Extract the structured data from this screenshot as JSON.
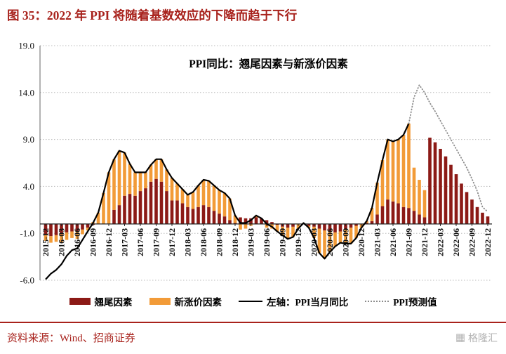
{
  "header": {
    "title": "图 35：2022 年 PPI 将随着基数效应的下降而趋于下行"
  },
  "footer": {
    "source": "资料来源：Wind、招商证券",
    "watermark": "格隆汇"
  },
  "colors": {
    "brand_red": "#A8221C",
    "bar_red": "#8C1A16",
    "bar_orange": "#F29B38",
    "line_black": "#000000",
    "forecast_gray": "#8C8C8C"
  },
  "chart_data": {
    "type": "bar",
    "title": "PPI同比：翘尾因素与新涨价因素",
    "ylim": [
      -6,
      19
    ],
    "y_ticks": [
      19.0,
      14.0,
      9.0,
      4.0,
      -1.0,
      -6.0
    ],
    "grid": "dotted-horizontal",
    "legend_position": "bottom",
    "x_tick_every": 3,
    "months": [
      "2015-12",
      "2016-01",
      "2016-02",
      "2016-03",
      "2016-04",
      "2016-05",
      "2016-06",
      "2016-07",
      "2016-08",
      "2016-09",
      "2016-10",
      "2016-11",
      "2016-12",
      "2017-01",
      "2017-02",
      "2017-03",
      "2017-04",
      "2017-05",
      "2017-06",
      "2017-07",
      "2017-08",
      "2017-09",
      "2017-10",
      "2017-11",
      "2017-12",
      "2018-01",
      "2018-02",
      "2018-03",
      "2018-04",
      "2018-05",
      "2018-06",
      "2018-07",
      "2018-08",
      "2018-09",
      "2018-10",
      "2018-11",
      "2018-12",
      "2019-01",
      "2019-02",
      "2019-03",
      "2019-04",
      "2019-05",
      "2019-06",
      "2019-07",
      "2019-08",
      "2019-09",
      "2019-10",
      "2019-11",
      "2019-12",
      "2020-01",
      "2020-02",
      "2020-03",
      "2020-04",
      "2020-05",
      "2020-06",
      "2020-07",
      "2020-08",
      "2020-09",
      "2020-10",
      "2020-11",
      "2020-12",
      "2021-01",
      "2021-02",
      "2021-03",
      "2021-04",
      "2021-05",
      "2021-06",
      "2021-07",
      "2021-08",
      "2021-09",
      "2021-10",
      "2021-11",
      "2021-12",
      "2022-01",
      "2022-02",
      "2022-03",
      "2022-04",
      "2022-05",
      "2022-06",
      "2022-07",
      "2022-08",
      "2022-09",
      "2022-10",
      "2022-11",
      "2022-12"
    ],
    "series": [
      {
        "name": "翘尾因素",
        "type": "bar-stacked",
        "color": "#8C1A16",
        "values": [
          -1.2,
          -1.3,
          -1.2,
          -1.1,
          -0.9,
          -0.8,
          -0.8,
          -0.6,
          -0.4,
          -0.1,
          0,
          0,
          0,
          1.5,
          2.0,
          3.0,
          3.2,
          3.0,
          3.5,
          3.8,
          4.5,
          4.8,
          4.5,
          3.5,
          2.5,
          2.5,
          2.2,
          1.8,
          1.6,
          1.8,
          2.0,
          1.8,
          1.4,
          1.1,
          0.8,
          0.4,
          0.1,
          0.7,
          0.6,
          0.6,
          0.7,
          0.6,
          0.4,
          0.2,
          -0.1,
          -0.3,
          -0.4,
          -0.3,
          0,
          0,
          -0.2,
          -0.3,
          -0.5,
          -0.7,
          -0.8,
          -0.9,
          -0.8,
          -0.6,
          -0.4,
          -0.2,
          0,
          0.1,
          0.3,
          1.0,
          1.9,
          2.6,
          2.4,
          2.2,
          1.8,
          1.7,
          1.4,
          1.0,
          0.7,
          9.2,
          8.7,
          8.0,
          7.2,
          6.3,
          5.3,
          4.3,
          3.4,
          2.6,
          1.8,
          1.2,
          0.8
        ]
      },
      {
        "name": "新涨价因素",
        "type": "bar-stacked",
        "color": "#F29B38",
        "values": [
          -0.6,
          -0.7,
          -0.7,
          -0.9,
          -0.8,
          -0.7,
          -0.8,
          -0.5,
          -0.3,
          0.2,
          1.2,
          3.3,
          5.5,
          5.4,
          5.8,
          4.6,
          3.2,
          2.5,
          2.0,
          1.7,
          1.8,
          2.1,
          2.4,
          2.3,
          2.4,
          1.8,
          1.5,
          1.3,
          1.8,
          2.3,
          2.7,
          2.8,
          2.7,
          2.5,
          2.5,
          2.3,
          0.8,
          -0.6,
          -0.5,
          -0.2,
          0.2,
          0,
          -0.4,
          -0.5,
          -0.7,
          -0.9,
          -1.2,
          -1.1,
          -0.5,
          0.1,
          -0.2,
          -1.2,
          -2.6,
          -3.0,
          -2.2,
          -1.5,
          -1.2,
          -1.5,
          -1.7,
          -1.3,
          -0.4,
          0.2,
          1.4,
          3.4,
          4.9,
          6.4,
          6.4,
          6.8,
          7.7,
          9.0,
          4.6,
          3.7,
          2.9,
          0,
          0,
          0,
          0,
          0,
          0,
          0,
          0,
          0,
          0,
          0,
          0
        ]
      },
      {
        "name": "左轴：PPI当月同比",
        "type": "line",
        "color": "#000000",
        "start_index": 0,
        "values": [
          -5.9,
          -5.3,
          -4.9,
          -4.3,
          -3.4,
          -2.8,
          -2.6,
          -1.7,
          -0.8,
          0.1,
          1.2,
          3.3,
          5.5,
          6.9,
          7.8,
          7.6,
          6.4,
          5.5,
          5.5,
          5.5,
          6.3,
          6.9,
          6.9,
          5.8,
          4.9,
          4.3,
          3.7,
          3.1,
          3.4,
          4.1,
          4.7,
          4.6,
          4.1,
          3.6,
          3.3,
          2.7,
          0.9,
          0.1,
          0.1,
          0.4,
          0.9,
          0.6,
          0,
          -0.3,
          -0.8,
          -1.2,
          -1.6,
          -1.4,
          -0.5,
          0.1,
          -0.4,
          -1.5,
          -3.1,
          -3.7,
          -3.0,
          -2.4,
          -2.0,
          -2.1,
          -2.1,
          -1.5,
          -0.4,
          0.3,
          1.7,
          4.4,
          6.8,
          9.0,
          8.8,
          9.0,
          9.5,
          10.7
        ]
      },
      {
        "name": "PPI预测值",
        "type": "dotted-line",
        "color": "#8C8C8C",
        "start_index": 69,
        "values": [
          10.7,
          13.5,
          14.8,
          14.0,
          12.9,
          12.0,
          11.0,
          10.0,
          9.0,
          8.0,
          7.0,
          6.0,
          4.8,
          3.5,
          1.8,
          1.3
        ]
      }
    ]
  }
}
